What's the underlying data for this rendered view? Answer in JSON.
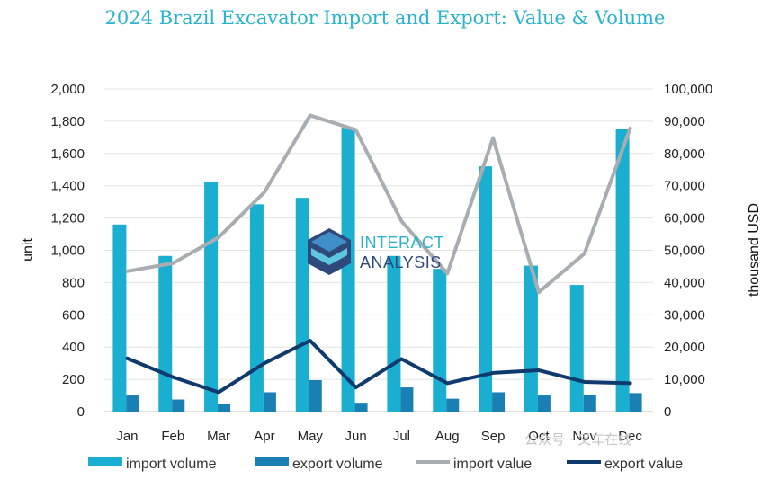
{
  "chart_data": {
    "type": "bar+line",
    "title": "2024 Brazil Excavator Import and Export: Value & Volume",
    "ylabel": "unit",
    "y2label": "thousand USD",
    "ylim": [
      0,
      2000
    ],
    "y2lim": [
      0,
      100000
    ],
    "yticks": [
      "0",
      "200",
      "400",
      "600",
      "800",
      "1,000",
      "1,200",
      "1,400",
      "1,600",
      "1,800",
      "2,000"
    ],
    "y2ticks": [
      "0",
      "10,000",
      "20,000",
      "30,000",
      "40,000",
      "50,000",
      "60,000",
      "70,000",
      "80,000",
      "90,000",
      "100,000"
    ],
    "categories": [
      "Jan",
      "Feb",
      "Mar",
      "Apr",
      "May",
      "Jun",
      "Jul",
      "Aug",
      "Sep",
      "Oct",
      "Nov",
      "Dec"
    ],
    "series": [
      {
        "name": "import volume",
        "type": "bar",
        "axis": "left",
        "color": "#1AAFD0",
        "values": [
          1160,
          965,
          1425,
          1285,
          1325,
          1760,
          965,
          885,
          1520,
          905,
          785,
          1755
        ]
      },
      {
        "name": "export volume",
        "type": "bar",
        "axis": "left",
        "color": "#1A7FB3",
        "values": [
          100,
          75,
          50,
          120,
          195,
          55,
          150,
          80,
          120,
          100,
          105,
          115
        ]
      },
      {
        "name": "import value",
        "type": "line",
        "axis": "right",
        "color": "#A8ADB1",
        "values": [
          43500,
          46000,
          54000,
          68000,
          91800,
          87300,
          59000,
          42800,
          84800,
          37000,
          49000,
          87800
        ]
      },
      {
        "name": "export value",
        "type": "line",
        "axis": "right",
        "color": "#0F3A6E",
        "values": [
          16500,
          10700,
          6000,
          15000,
          22000,
          7500,
          16300,
          8800,
          12000,
          12800,
          9200,
          8800
        ]
      }
    ],
    "grid": true,
    "legend": "bottom"
  },
  "logo": {
    "line1": "INTERACT",
    "line2": "ANALYSIS"
  },
  "watermark": "公众号 · 叉车在线"
}
